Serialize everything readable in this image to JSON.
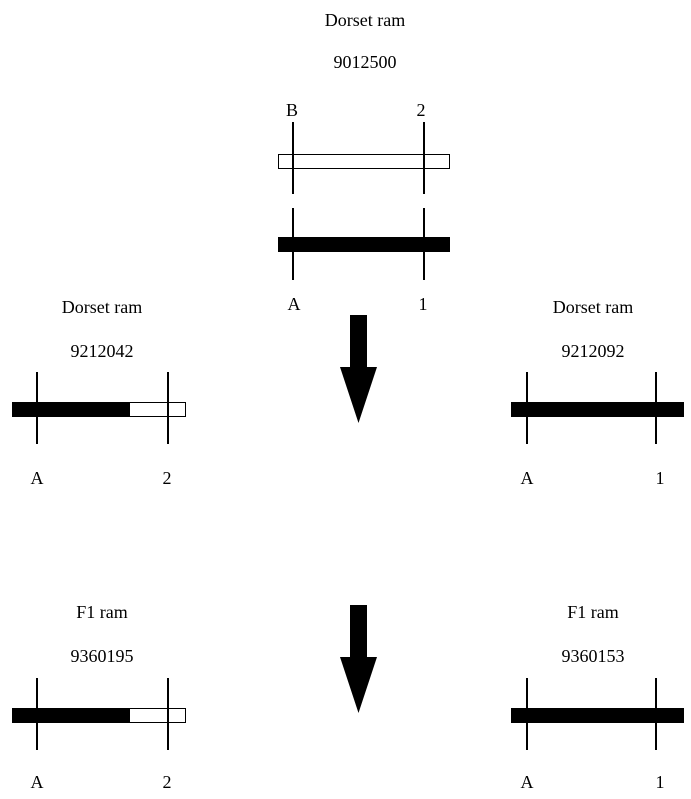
{
  "top": {
    "breed": "Dorset ram",
    "id": "9012500",
    "upper_left": "B",
    "upper_right": "2",
    "lower_left": "A",
    "lower_right": "1"
  },
  "mid_left": {
    "breed": "Dorset ram",
    "id": "9212042",
    "left": "A",
    "right": "2"
  },
  "mid_right": {
    "breed": "Dorset ram",
    "id": "9212092",
    "left": "A",
    "right": "1"
  },
  "bot_left": {
    "breed": "F1 ram",
    "id": "9360195",
    "left": "A",
    "right": "2"
  },
  "bot_right": {
    "breed": "F1 ram",
    "id": "9360153",
    "left": "A",
    "right": "1"
  },
  "colors": {
    "ink": "#000000",
    "background": "#ffffff"
  }
}
